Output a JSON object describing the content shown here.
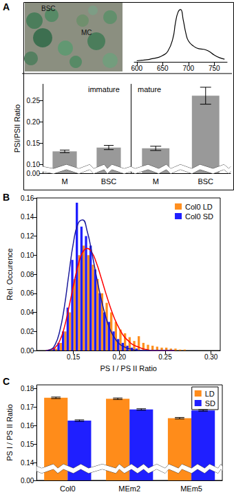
{
  "panels": [
    "A",
    "B",
    "C"
  ],
  "micrograph": {
    "labels": [
      "BSC",
      "MC"
    ]
  },
  "chart_data": [
    {
      "type": "line",
      "x": [
        600,
        610,
        620,
        630,
        640,
        650,
        660,
        670,
        675,
        680,
        685,
        690,
        695,
        700,
        710,
        720,
        730,
        740,
        750,
        760,
        770
      ],
      "values": [
        0.02,
        0.03,
        0.04,
        0.06,
        0.08,
        0.12,
        0.2,
        0.45,
        0.75,
        0.95,
        1.0,
        0.8,
        0.55,
        0.4,
        0.3,
        0.25,
        0.24,
        0.2,
        0.13,
        0.08,
        0.05
      ],
      "color": "#000000",
      "xlim": [
        595,
        775
      ],
      "xticks": [
        600,
        650,
        700,
        750
      ],
      "ylim": [
        0,
        1.05
      ],
      "tick_labels": "x"
    },
    {
      "type": "bar",
      "title": "immature",
      "ylabel": "PSI/PSII Ratio",
      "categories": [
        "M",
        "BSC"
      ],
      "values": [
        0.131,
        0.14
      ],
      "errors": [
        0.003,
        0.005
      ],
      "color": "#999999",
      "ylim": [
        0,
        0.29
      ],
      "yticks": [
        {
          "value": 0,
          "label": "0.00"
        },
        {
          "value": 0.1,
          "label": "0.10"
        },
        0.15,
        {
          "value": 0.2,
          "label": "0.20"
        },
        0.25
      ],
      "axis_break": [
        0.005,
        0.095
      ]
    },
    {
      "type": "bar",
      "title": "mature",
      "categories": [
        "M",
        "BSC"
      ],
      "values": [
        0.138,
        0.262
      ],
      "errors": [
        0.005,
        0.02
      ],
      "color": "#999999",
      "ylim": [
        0,
        0.29
      ],
      "axis_break": [
        0.005,
        0.095
      ],
      "tick_labels": "x"
    },
    {
      "type": "histogram",
      "xlabel": "PS I / PS II Ratio",
      "ylabel": "Rel. Occurence",
      "bins": [
        0.125,
        0.13,
        0.135,
        0.14,
        0.145,
        0.15,
        0.155,
        0.16,
        0.165,
        0.17,
        0.175,
        0.18,
        0.185,
        0.19,
        0.195,
        0.2,
        0.205,
        0.21,
        0.215,
        0.22,
        0.225,
        0.23,
        0.235,
        0.24,
        0.245,
        0.25,
        0.255,
        0.26,
        0.265,
        0.27,
        0.275
      ],
      "series": [
        {
          "name": "Col0 LD",
          "color": "#ff8f1f",
          "values": [
            0,
            0.002,
            0.008,
            0.02,
            0.04,
            0.075,
            0.1,
            0.11,
            0.1,
            0.09,
            0.075,
            0.06,
            0.05,
            0.04,
            0.03,
            0.022,
            0.018,
            0.014,
            0.01,
            0.015,
            0.008,
            0.006,
            0.005,
            0.004,
            0.003,
            0.003,
            0.002,
            0.002,
            0.001,
            0.001
          ]
        },
        {
          "name": "Col0 SD",
          "color": "#1f1fff",
          "values": [
            0.002,
            0.008,
            0.02,
            0.045,
            0.095,
            0.155,
            0.13,
            0.12,
            0.11,
            0.085,
            0.06,
            0.04,
            0.03,
            0.02,
            0.012,
            0.008,
            0.005,
            0.003,
            0.002,
            0,
            0,
            0,
            0,
            0,
            0,
            0,
            0,
            0,
            0,
            0
          ]
        }
      ],
      "fits": [
        {
          "color": "#ff0000",
          "x": [
            0.12,
            0.125,
            0.13,
            0.135,
            0.14,
            0.145,
            0.15,
            0.155,
            0.16,
            0.165,
            0.17,
            0.175,
            0.18,
            0.185,
            0.19,
            0.195,
            0.2,
            0.205,
            0.21,
            0.215,
            0.22,
            0.225,
            0.23,
            0.235,
            0.24,
            0.245,
            0.25,
            0.255,
            0.26
          ],
          "values": [
            0,
            0.001,
            0.003,
            0.01,
            0.024,
            0.045,
            0.068,
            0.089,
            0.103,
            0.107,
            0.103,
            0.092,
            0.077,
            0.061,
            0.046,
            0.033,
            0.023,
            0.015,
            0.01,
            0.006,
            0.004,
            0.002,
            0.001,
            0,
            0,
            0,
            0,
            0,
            0
          ]
        },
        {
          "color": "#1a1a9c",
          "x": [
            0.12,
            0.125,
            0.13,
            0.135,
            0.14,
            0.145,
            0.15,
            0.155,
            0.16,
            0.165,
            0.17,
            0.175,
            0.18,
            0.185,
            0.19,
            0.195,
            0.2,
            0.205,
            0.21,
            0.215,
            0.22,
            0.225,
            0.23,
            0.235,
            0.24,
            0.245,
            0.25,
            0.255,
            0.26
          ],
          "values": [
            0,
            0.001,
            0.006,
            0.02,
            0.045,
            0.08,
            0.113,
            0.133,
            0.137,
            0.125,
            0.103,
            0.078,
            0.055,
            0.036,
            0.022,
            0.013,
            0.007,
            0.004,
            0.002,
            0.001,
            0,
            0,
            0,
            0,
            0,
            0,
            0,
            0,
            0
          ]
        }
      ],
      "xlim": [
        0.11,
        0.31
      ],
      "xticks": [
        0.15,
        {
          "value": 0.2,
          "label": "0.20"
        },
        0.25,
        {
          "value": 0.3,
          "label": "0.30"
        }
      ],
      "ylim": [
        0,
        0.16
      ],
      "yticks": [
        {
          "value": 0,
          "label": "0.00"
        },
        0.02,
        0.04,
        0.06,
        0.08,
        {
          "value": 0.1,
          "label": "0.10"
        },
        0.12,
        0.14,
        0.16
      ],
      "legend": "top-right"
    },
    {
      "type": "bar",
      "ylabel": "PS I / PS II Ratio",
      "categories": [
        "Col0",
        "MEm2",
        "MEm5"
      ],
      "series": [
        {
          "name": "LD",
          "color": "#ff8c1a",
          "values": [
            0.175,
            0.1745,
            0.164
          ],
          "errors": [
            0.0004,
            0.0004,
            0.0004
          ]
        },
        {
          "name": "SD",
          "color": "#1f1fff",
          "values": [
            0.1627,
            0.1687,
            0.1682
          ],
          "errors": [
            0.0004,
            0.0004,
            0.0004
          ]
        }
      ],
      "ylim": [
        0,
        0.182
      ],
      "yticks": [
        {
          "value": 0,
          "label": "0.00"
        },
        0.14,
        0.15,
        0.16,
        0.17,
        0.18
      ],
      "axis_break": [
        0.005,
        0.138
      ],
      "legend": "top-right"
    }
  ]
}
